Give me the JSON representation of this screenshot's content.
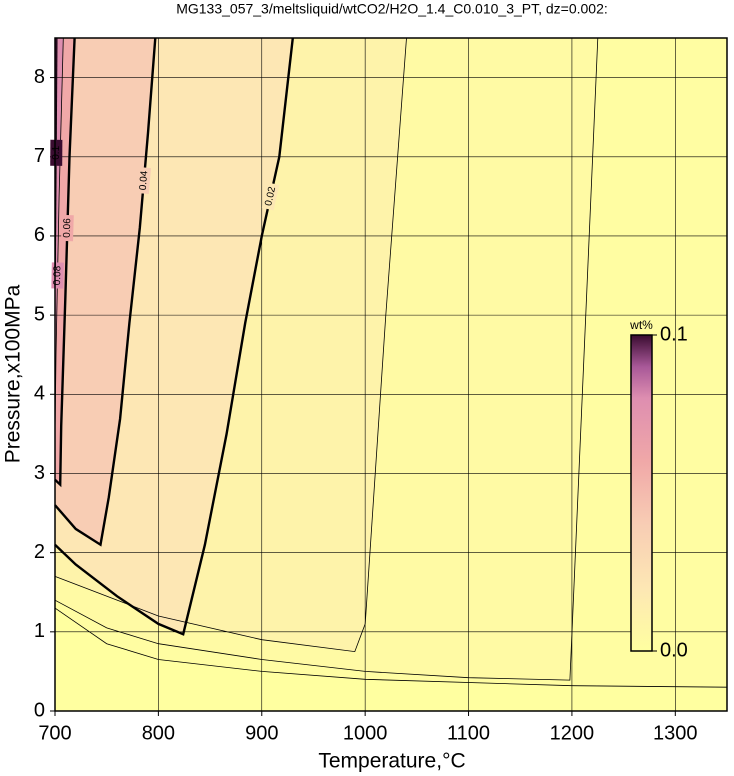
{
  "chart_data": {
    "type": "contour",
    "title": "MG133_057_3/meltsliquid/wtCO2/H2O_1.4_C0.010_3_PT, dz=0.002:",
    "x_label": "Temperature,°C",
    "y_label": "Pressure,x100MPa",
    "xlim": [
      700,
      1350
    ],
    "ylim": [
      0,
      8.5
    ],
    "xticks": [
      700,
      800,
      900,
      1000,
      1100,
      1200,
      1300
    ],
    "yticks": [
      0,
      1,
      2,
      3,
      4,
      5,
      6,
      7,
      8
    ],
    "grid": true,
    "colorbar": {
      "label": "wt%",
      "lim": [
        0,
        0.1
      ],
      "ticks": [
        {
          "value": 0,
          "label": "0.0"
        },
        0.1
      ]
    },
    "contours": [
      {
        "level": 0.002,
        "bold": false,
        "labeled": false,
        "x": [
          1350,
          1200,
          1000,
          900,
          800,
          750,
          700
        ],
        "y": [
          0.3,
          0.32,
          0.4,
          0.5,
          0.65,
          0.85,
          1.3
        ]
      },
      {
        "level": 0.004,
        "bold": false,
        "labeled": false,
        "x": [
          1225,
          1198,
          1100,
          1000,
          900,
          800,
          750,
          700
        ],
        "y": [
          8.5,
          0.39,
          0.42,
          0.5,
          0.65,
          0.85,
          1.05,
          1.4
        ]
      },
      {
        "level": 0.01,
        "bold": false,
        "labeled": false,
        "x": [
          1040,
          1020,
          1000,
          990,
          900,
          800,
          700
        ],
        "y": [
          8.5,
          5,
          1.1,
          0.75,
          0.9,
          1.2,
          1.7
        ]
      },
      {
        "level": 0.02,
        "bold": true,
        "labeled": true,
        "x": [
          930,
          917,
          900,
          884,
          866,
          845,
          824,
          800,
          760,
          720,
          700
        ],
        "y": [
          8.5,
          7,
          6,
          4.9,
          3.5,
          2.1,
          0.97,
          1.1,
          1.45,
          1.85,
          2.1
        ]
      },
      {
        "level": 0.04,
        "bold": true,
        "labeled": true,
        "x": [
          797,
          790,
          782,
          772,
          763,
          752,
          744,
          720,
          700
        ],
        "y": [
          8.5,
          7.3,
          6.1,
          4.9,
          3.69,
          2.7,
          2.1,
          2.3,
          2.6
        ]
      },
      {
        "level": 0.06,
        "bold": true,
        "labeled": true,
        "x": [
          719,
          714,
          710,
          706,
          705,
          700
        ],
        "y": [
          8.5,
          7,
          5.2,
          3.6,
          2.86,
          2.92
        ]
      },
      {
        "level": 0.08,
        "bold": false,
        "labeled": true,
        "x": [
          708,
          704,
          701,
          700
        ],
        "y": [
          8.5,
          6.5,
          4.5,
          3.5
        ]
      },
      {
        "level": 0.1,
        "bold": false,
        "labeled": true,
        "x": [
          702,
          700.5
        ],
        "y": [
          8.5,
          5.6
        ]
      }
    ]
  }
}
